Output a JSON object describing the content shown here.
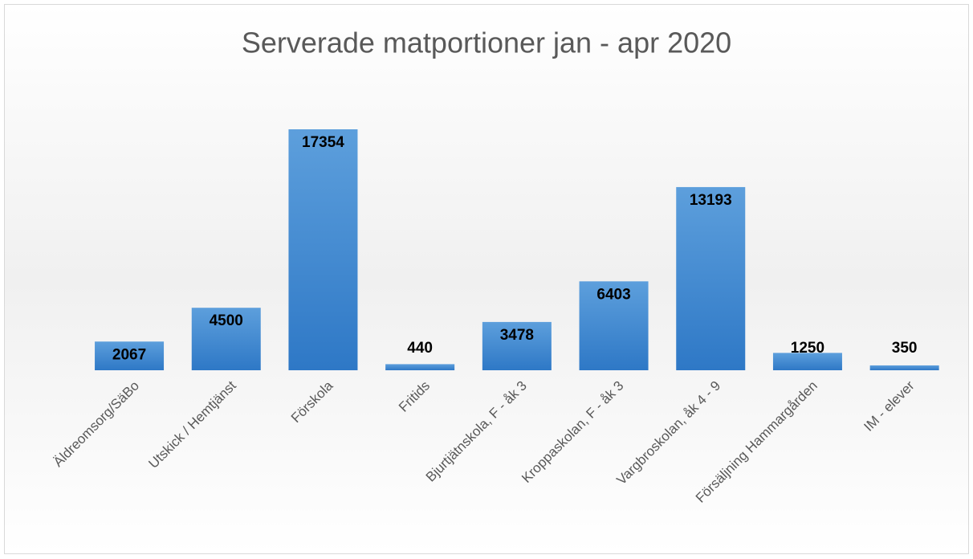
{
  "chart_data": {
    "type": "bar",
    "title": "Serverade matportioner jan - apr 2020",
    "categories": [
      "Äldreomsorg/SäBo",
      "Utskick / Hemtjänst",
      "Förskola",
      "Fritids",
      "Bjurtjätnskola, F - åk 3",
      "Kroppaskolan, F - åk 3",
      "Vargbroskolan, åk 4 - 9",
      "Försäljning Hammargården",
      "IM - elever"
    ],
    "values": [
      2067,
      4500,
      17354,
      440,
      3478,
      6403,
      13193,
      1250,
      350
    ],
    "color": "#4a8fd4"
  }
}
